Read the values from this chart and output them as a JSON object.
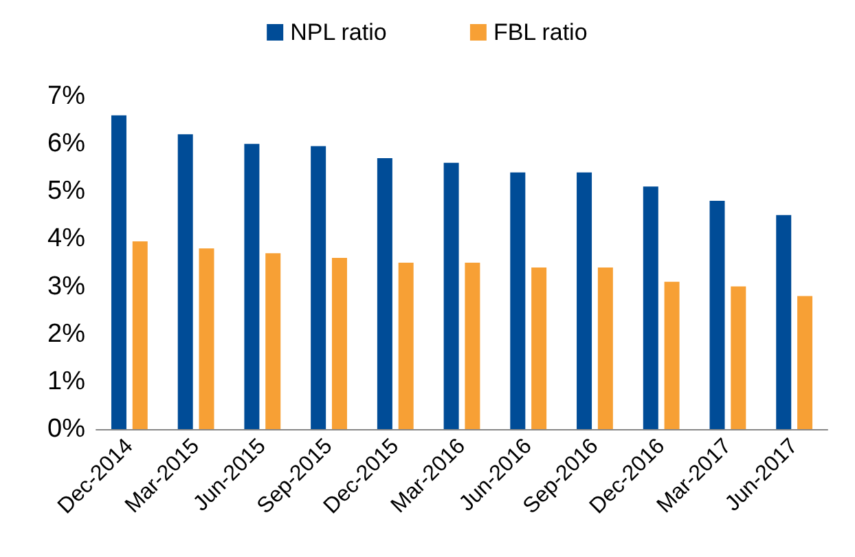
{
  "chart_data": {
    "type": "bar",
    "categories": [
      "Dec-2014",
      "Mar-2015",
      "Jun-2015",
      "Sep-2015",
      "Dec-2015",
      "Mar-2016",
      "Jun-2016",
      "Sep-2016",
      "Dec-2016",
      "Mar-2017",
      "Jun-2017"
    ],
    "series": [
      {
        "name": "NPL ratio",
        "color": "#004c97",
        "values": [
          6.6,
          6.2,
          6.0,
          5.95,
          5.7,
          5.6,
          5.4,
          5.4,
          5.1,
          4.8,
          4.5
        ]
      },
      {
        "name": "FBL ratio",
        "color": "#f7a035",
        "values": [
          3.95,
          3.8,
          3.7,
          3.6,
          3.5,
          3.5,
          3.4,
          3.4,
          3.1,
          3.0,
          2.8
        ]
      }
    ],
    "ylim": [
      0,
      7
    ],
    "yticks": [
      {
        "value": 0,
        "label": "0%"
      },
      {
        "value": 1,
        "label": "1%"
      },
      {
        "value": 2,
        "label": "2%"
      },
      {
        "value": 3,
        "label": "3%"
      },
      {
        "value": 4,
        "label": "4%"
      },
      {
        "value": 5,
        "label": "5%"
      },
      {
        "value": 6,
        "label": "6%"
      },
      {
        "value": 7,
        "label": "7%"
      }
    ],
    "grid": false,
    "legend": "top"
  }
}
